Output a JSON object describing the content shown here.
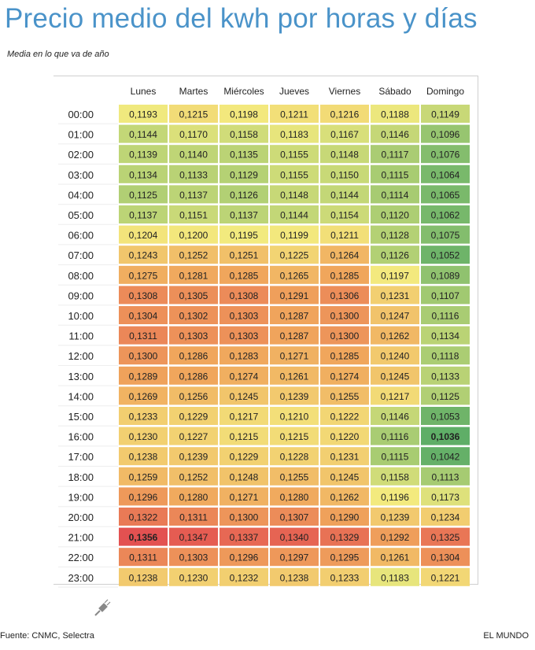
{
  "title": "Precio medio del kwh por horas y días",
  "subtitle": "Media en lo que va de año",
  "source": "Fuente: CNMC, Selectra",
  "brand": "EL MUNDO",
  "icon": "plug-icon",
  "chart_data": {
    "type": "heatmap",
    "columns": [
      "Lunes",
      "Martes",
      "Miércoles",
      "Jueves",
      "Viernes",
      "Sábado",
      "Domingo"
    ],
    "rows": [
      "00:00",
      "01:00",
      "02:00",
      "03:00",
      "04:00",
      "05:00",
      "06:00",
      "07:00",
      "08:00",
      "09:00",
      "10:00",
      "11:00",
      "12:00",
      "13:00",
      "14:00",
      "15:00",
      "16:00",
      "17:00",
      "18:00",
      "19:00",
      "20:00",
      "21:00",
      "22:00",
      "23:00"
    ],
    "values": [
      [
        "0,1193",
        "0,1215",
        "0,1198",
        "0,1211",
        "0,1216",
        "0,1188",
        "0,1149"
      ],
      [
        "0,1144",
        "0,1170",
        "0,1158",
        "0,1183",
        "0,1167",
        "0,1146",
        "0,1096"
      ],
      [
        "0,1139",
        "0,1140",
        "0,1135",
        "0,1155",
        "0,1148",
        "0,1117",
        "0,1076"
      ],
      [
        "0,1134",
        "0,1133",
        "0,1129",
        "0,1155",
        "0,1150",
        "0,1115",
        "0,1064"
      ],
      [
        "0,1125",
        "0,1137",
        "0,1126",
        "0,1148",
        "0,1144",
        "0,1114",
        "0,1065"
      ],
      [
        "0,1137",
        "0,1151",
        "0,1137",
        "0,1144",
        "0,1154",
        "0,1120",
        "0,1062"
      ],
      [
        "0,1204",
        "0,1200",
        "0,1195",
        "0,1199",
        "0,1211",
        "0,1128",
        "0,1075"
      ],
      [
        "0,1243",
        "0,1252",
        "0,1251",
        "0,1225",
        "0,1264",
        "0,1126",
        "0,1052"
      ],
      [
        "0,1275",
        "0,1281",
        "0,1285",
        "0,1265",
        "0,1285",
        "0,1197",
        "0,1089"
      ],
      [
        "0,1308",
        "0,1305",
        "0,1308",
        "0,1291",
        "0,1306",
        "0,1231",
        "0,1107"
      ],
      [
        "0,1304",
        "0,1302",
        "0,1303",
        "0,1287",
        "0,1300",
        "0,1247",
        "0,1116"
      ],
      [
        "0,1311",
        "0,1303",
        "0,1303",
        "0,1287",
        "0,1300",
        "0,1262",
        "0,1134"
      ],
      [
        "0,1300",
        "0,1286",
        "0,1283",
        "0,1271",
        "0,1285",
        "0,1240",
        "0,1118"
      ],
      [
        "0,1289",
        "0,1286",
        "0,1274",
        "0,1261",
        "0,1274",
        "0,1245",
        "0,1133"
      ],
      [
        "0,1269",
        "0,1256",
        "0,1245",
        "0,1239",
        "0,1255",
        "0,1217",
        "0,1125"
      ],
      [
        "0,1233",
        "0,1229",
        "0,1217",
        "0,1210",
        "0,1222",
        "0,1146",
        "0,1053"
      ],
      [
        "0,1230",
        "0,1227",
        "0,1215",
        "0,1215",
        "0,1220",
        "0,1116",
        "0,1036"
      ],
      [
        "0,1238",
        "0,1239",
        "0,1229",
        "0,1228",
        "0,1231",
        "0,1115",
        "0,1042"
      ],
      [
        "0,1259",
        "0,1252",
        "0,1248",
        "0,1255",
        "0,1245",
        "0,1158",
        "0,1113"
      ],
      [
        "0,1296",
        "0,1280",
        "0,1271",
        "0,1280",
        "0,1262",
        "0,1196",
        "0,1173"
      ],
      [
        "0,1322",
        "0,1311",
        "0,1300",
        "0,1307",
        "0,1290",
        "0,1239",
        "0,1234"
      ],
      [
        "0,1356",
        "0,1347",
        "0,1337",
        "0,1340",
        "0,1329",
        "0,1292",
        "0,1325"
      ],
      [
        "0,1311",
        "0,1303",
        "0,1296",
        "0,1297",
        "0,1295",
        "0,1261",
        "0,1304"
      ],
      [
        "0,1238",
        "0,1230",
        "0,1232",
        "0,1238",
        "0,1233",
        "0,1183",
        "0,1221"
      ]
    ],
    "highlighted": {
      "max": "0,1356",
      "min": "0,1036"
    },
    "color_scale": {
      "low": "#5fae67",
      "mid": "#f3ea7e",
      "high": "#e35151"
    }
  }
}
